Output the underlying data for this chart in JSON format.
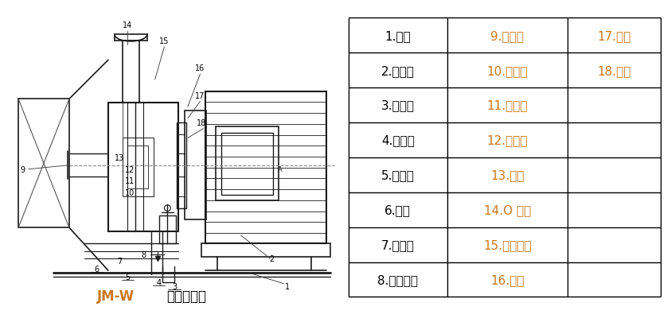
{
  "table_data": [
    [
      "1.底座",
      "9.加料斗",
      "17.轴承"
    ],
    [
      "2.电动机",
      "10.旋叶刀",
      "18.端盖"
    ],
    [
      "3.排漏口",
      "11.动磨盘",
      ""
    ],
    [
      "4.出料口",
      "12.静磨盘",
      ""
    ],
    [
      "5.循环管",
      "13.刻度",
      ""
    ],
    [
      "6.手柄",
      "14.O 型圈",
      ""
    ],
    [
      "7.调节盘",
      "15.机械密封",
      ""
    ],
    [
      "8.冷却接头",
      "16.壳体",
      ""
    ]
  ],
  "col1_color": "#000000",
  "col2_color": "#c87820",
  "col3_color": "#c87820",
  "table_border_color": "#000000",
  "caption_jmw_color": "#c87820",
  "caption_text": "卧式胶体磨",
  "caption_jmw": "JM-W",
  "bg_color": "#ffffff",
  "font_size_table": 11,
  "font_size_caption": 12
}
